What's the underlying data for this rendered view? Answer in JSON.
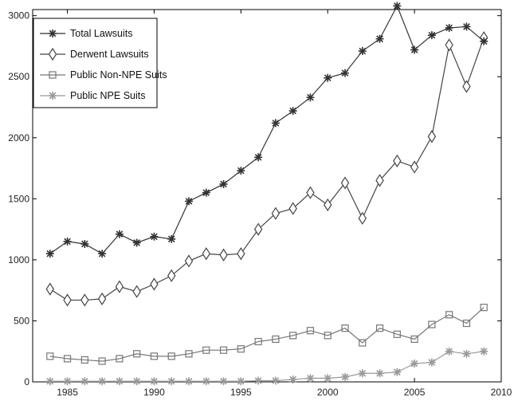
{
  "chart_data": {
    "type": "line",
    "title": "",
    "xlabel": "",
    "ylabel": "",
    "xlim": [
      1983,
      2010
    ],
    "ylim": [
      0,
      3050
    ],
    "x": [
      1984,
      1985,
      1986,
      1987,
      1988,
      1989,
      1990,
      1991,
      1992,
      1993,
      1994,
      1995,
      1996,
      1997,
      1998,
      1999,
      2000,
      2001,
      2002,
      2003,
      2004,
      2005,
      2006,
      2007,
      2008,
      2009
    ],
    "xticks": [
      1985,
      1990,
      1995,
      2000,
      2005,
      2010
    ],
    "yticks": [
      0,
      500,
      1000,
      1500,
      2000,
      2500,
      3000
    ],
    "grid": false,
    "legend_position": "top-left",
    "series": [
      {
        "name": "Total Lawsuits",
        "marker": "star",
        "color": "#333333",
        "values": [
          1050,
          1150,
          1130,
          1050,
          1210,
          1140,
          1190,
          1170,
          1480,
          1550,
          1620,
          1730,
          1840,
          2120,
          2220,
          2330,
          2490,
          2530,
          2710,
          2810,
          3080,
          2720,
          2840,
          2900,
          2910,
          2790
        ]
      },
      {
        "name": "Derwent Lawsuits",
        "marker": "diamond",
        "color": "#444444",
        "values": [
          760,
          670,
          670,
          680,
          780,
          740,
          800,
          870,
          990,
          1050,
          1040,
          1050,
          1250,
          1380,
          1420,
          1550,
          1450,
          1630,
          1340,
          1650,
          1810,
          1760,
          2010,
          2760,
          2420,
          2820
        ]
      },
      {
        "name": "Public Non-NPE Suits",
        "marker": "square",
        "color": "#777777",
        "values": [
          210,
          190,
          180,
          170,
          190,
          230,
          210,
          210,
          230,
          260,
          260,
          270,
          330,
          350,
          380,
          420,
          380,
          440,
          320,
          440,
          390,
          350,
          470,
          550,
          480,
          610
        ]
      },
      {
        "name": "Public NPE Suits",
        "marker": "star",
        "color": "#9a9a9a",
        "values": [
          5,
          5,
          5,
          5,
          5,
          5,
          5,
          5,
          5,
          5,
          5,
          5,
          10,
          10,
          20,
          30,
          30,
          40,
          70,
          70,
          80,
          150,
          160,
          250,
          230,
          250
        ]
      }
    ]
  }
}
